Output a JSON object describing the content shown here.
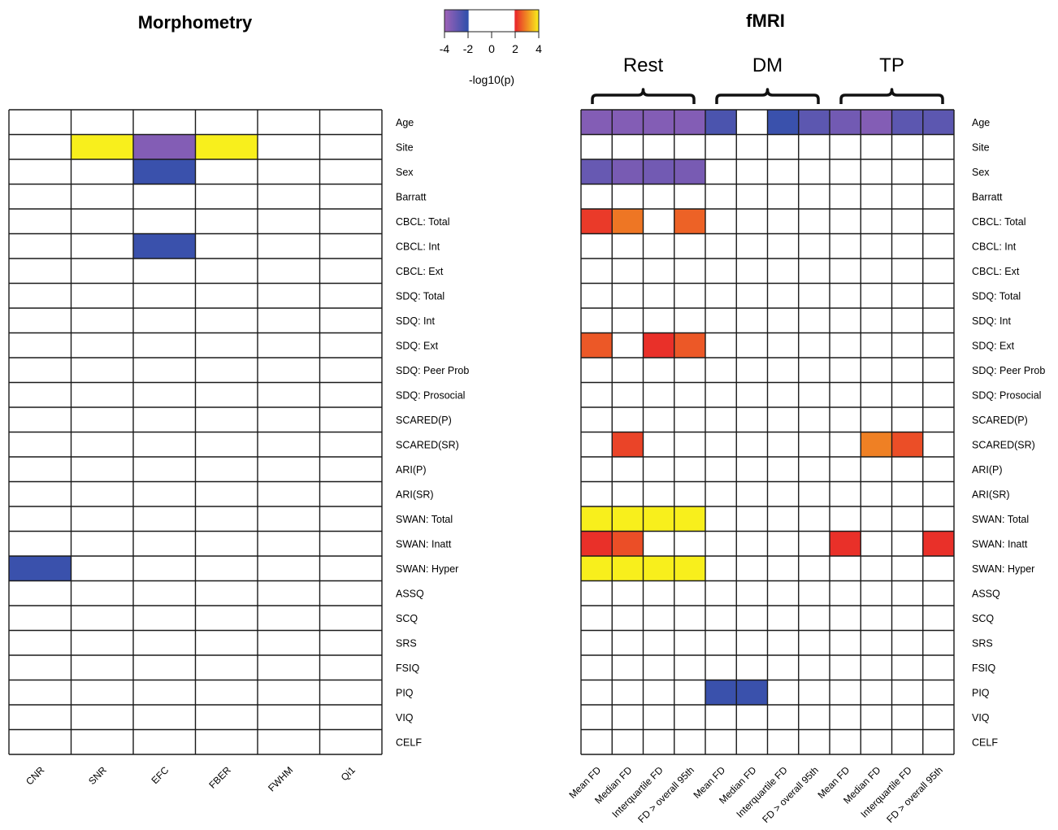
{
  "chart_data": [
    {
      "type": "heatmap",
      "title": "Morphometry",
      "columns": [
        "CNR",
        "SNR",
        "EFC",
        "FBER",
        "FWHM",
        "Qi1"
      ],
      "rows": [
        "Age",
        "Site",
        "Sex",
        "Barratt",
        "CBCL: Total",
        "CBCL: Int",
        "CBCL: Ext",
        "SDQ: Total",
        "SDQ: Int",
        "SDQ: Ext",
        "SDQ: Peer Prob",
        "SDQ: Prosocial",
        "SCARED(P)",
        "SCARED(SR)",
        "ARI(P)",
        "ARI(SR)",
        "SWAN: Total",
        "SWAN: Inatt",
        "SWAN: Hyper",
        "ASSQ",
        "SCQ",
        "SRS",
        "FSIQ",
        "PIQ",
        "VIQ",
        "CELF"
      ],
      "cells": [
        {
          "row": "Site",
          "col": "SNR",
          "value": 4
        },
        {
          "row": "Site",
          "col": "EFC",
          "value": -3.5
        },
        {
          "row": "Site",
          "col": "FBER",
          "value": 4
        },
        {
          "row": "Sex",
          "col": "EFC",
          "value": -2.2
        },
        {
          "row": "CBCL: Int",
          "col": "EFC",
          "value": -2.2
        },
        {
          "row": "SWAN: Hyper",
          "col": "CNR",
          "value": -2.2
        }
      ]
    },
    {
      "type": "heatmap",
      "title": "fMRI",
      "groups": [
        {
          "name": "Rest",
          "span": 4
        },
        {
          "name": "DM",
          "span": 4
        },
        {
          "name": "TP",
          "span": 4
        }
      ],
      "columns": [
        "Mean FD",
        "Median FD",
        "Interquartile FD",
        "FD > overall 95th",
        "Mean FD",
        "Median FD",
        "Interquartile FD",
        "FD > overall 95th",
        "Mean FD",
        "Median FD",
        "Interquartile FD",
        "FD > overall 95th"
      ],
      "rows": [
        "Age",
        "Site",
        "Sex",
        "Barratt",
        "CBCL: Total",
        "CBCL: Int",
        "CBCL: Ext",
        "SDQ: Total",
        "SDQ: Int",
        "SDQ: Ext",
        "SDQ: Peer Prob",
        "SDQ: Prosocial",
        "SCARED(P)",
        "SCARED(SR)",
        "ARI(P)",
        "ARI(SR)",
        "SWAN: Total",
        "SWAN: Inatt",
        "SWAN: Hyper",
        "ASSQ",
        "SCQ",
        "SRS",
        "FSIQ",
        "PIQ",
        "VIQ",
        "CELF"
      ],
      "cells": [
        {
          "row": "Age",
          "col": 0,
          "value": -3.5
        },
        {
          "row": "Age",
          "col": 1,
          "value": -3.5
        },
        {
          "row": "Age",
          "col": 2,
          "value": -3.5
        },
        {
          "row": "Age",
          "col": 3,
          "value": -3.5
        },
        {
          "row": "Age",
          "col": 4,
          "value": -2.5
        },
        {
          "row": "Age",
          "col": 6,
          "value": -2.2
        },
        {
          "row": "Age",
          "col": 7,
          "value": -2.8
        },
        {
          "row": "Age",
          "col": 8,
          "value": -3.2
        },
        {
          "row": "Age",
          "col": 9,
          "value": -3.5
        },
        {
          "row": "Age",
          "col": 10,
          "value": -2.8
        },
        {
          "row": "Age",
          "col": 11,
          "value": -2.8
        },
        {
          "row": "Sex",
          "col": 0,
          "value": -3
        },
        {
          "row": "Sex",
          "col": 1,
          "value": -3.3
        },
        {
          "row": "Sex",
          "col": 2,
          "value": -3.2
        },
        {
          "row": "Sex",
          "col": 3,
          "value": -3.3
        },
        {
          "row": "CBCL: Total",
          "col": 0,
          "value": 2.2
        },
        {
          "row": "CBCL: Total",
          "col": 1,
          "value": 2.8
        },
        {
          "row": "CBCL: Total",
          "col": 3,
          "value": 2.6
        },
        {
          "row": "SDQ: Ext",
          "col": 0,
          "value": 2.5
        },
        {
          "row": "SDQ: Ext",
          "col": 2,
          "value": 2.1
        },
        {
          "row": "SDQ: Ext",
          "col": 3,
          "value": 2.5
        },
        {
          "row": "SCARED(SR)",
          "col": 1,
          "value": 2.3
        },
        {
          "row": "SCARED(SR)",
          "col": 2,
          "value": 1.9
        },
        {
          "row": "SCARED(SR)",
          "col": 9,
          "value": 2.9
        },
        {
          "row": "SCARED(SR)",
          "col": 10,
          "value": 2.4
        },
        {
          "row": "SWAN: Total",
          "col": 0,
          "value": 4
        },
        {
          "row": "SWAN: Total",
          "col": 1,
          "value": 4
        },
        {
          "row": "SWAN: Total",
          "col": 2,
          "value": 4
        },
        {
          "row": "SWAN: Total",
          "col": 3,
          "value": 4
        },
        {
          "row": "SWAN: Inatt",
          "col": 0,
          "value": 2.1
        },
        {
          "row": "SWAN: Inatt",
          "col": 1,
          "value": 2.4
        },
        {
          "row": "SWAN: Inatt",
          "col": 8,
          "value": 2.1
        },
        {
          "row": "SWAN: Inatt",
          "col": 11,
          "value": 2.1
        },
        {
          "row": "SWAN: Hyper",
          "col": 0,
          "value": 4
        },
        {
          "row": "SWAN: Hyper",
          "col": 1,
          "value": 4
        },
        {
          "row": "SWAN: Hyper",
          "col": 2,
          "value": 4
        },
        {
          "row": "SWAN: Hyper",
          "col": 3,
          "value": 4
        },
        {
          "row": "PIQ",
          "col": 4,
          "value": -2.2
        },
        {
          "row": "PIQ",
          "col": 5,
          "value": -2.2
        }
      ]
    }
  ],
  "colorbar": {
    "ticks": [
      "-4",
      "-2",
      "0",
      "2",
      "4"
    ],
    "label": "-log10(p)",
    "range": [
      -4,
      4
    ],
    "stops": [
      {
        "value": -4,
        "color": "#9f62b8"
      },
      {
        "value": -2,
        "color": "#2f4fab"
      },
      {
        "value": -1.9,
        "color": "#ffffff"
      },
      {
        "value": 1.9,
        "color": "#ffffff"
      },
      {
        "value": 2,
        "color": "#e8262a"
      },
      {
        "value": 4,
        "color": "#f8ef1c"
      }
    ]
  }
}
